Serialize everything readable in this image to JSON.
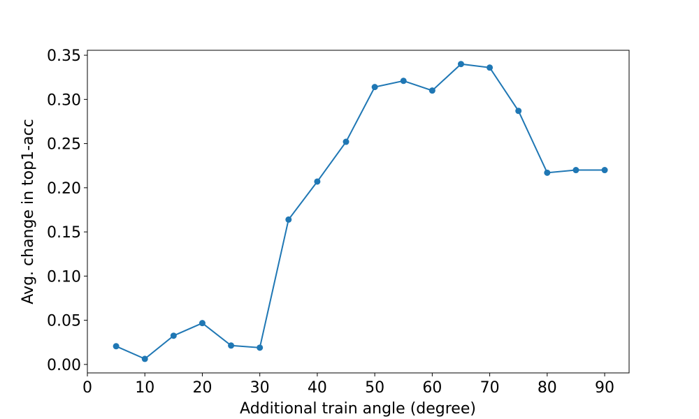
{
  "chart_data": {
    "type": "line",
    "xlabel": "Additional train angle (degree)",
    "ylabel": "Avg. change in top1-acc",
    "x": [
      5,
      10,
      15,
      20,
      25,
      30,
      35,
      40,
      45,
      50,
      55,
      60,
      65,
      70,
      75,
      80,
      85,
      90
    ],
    "series": [
      {
        "name": "Avg. change in top1-acc",
        "color": "#1f77b4",
        "values": [
          0.0206,
          0.0063,
          0.0325,
          0.0468,
          0.0214,
          0.019,
          0.164,
          0.207,
          0.252,
          0.314,
          0.321,
          0.31,
          0.34,
          0.336,
          0.287,
          0.217,
          0.22,
          0.22
        ]
      }
    ],
    "xlim": [
      0,
      94.25
    ],
    "ylim": [
      -0.0096,
      0.3556
    ],
    "xticks": [
      0,
      10,
      20,
      30,
      40,
      50,
      60,
      70,
      80,
      90
    ],
    "yticks": [
      {
        "value": 0,
        "label": "0.00"
      },
      {
        "value": 0.05,
        "label": "0.05"
      },
      {
        "value": 0.1,
        "label": "0.10"
      },
      {
        "value": 0.15,
        "label": "0.15"
      },
      {
        "value": 0.2,
        "label": "0.20"
      },
      {
        "value": 0.25,
        "label": "0.25"
      },
      {
        "value": 0.3,
        "label": "0.30"
      },
      {
        "value": 0.35,
        "label": "0.35"
      }
    ],
    "grid": false
  }
}
